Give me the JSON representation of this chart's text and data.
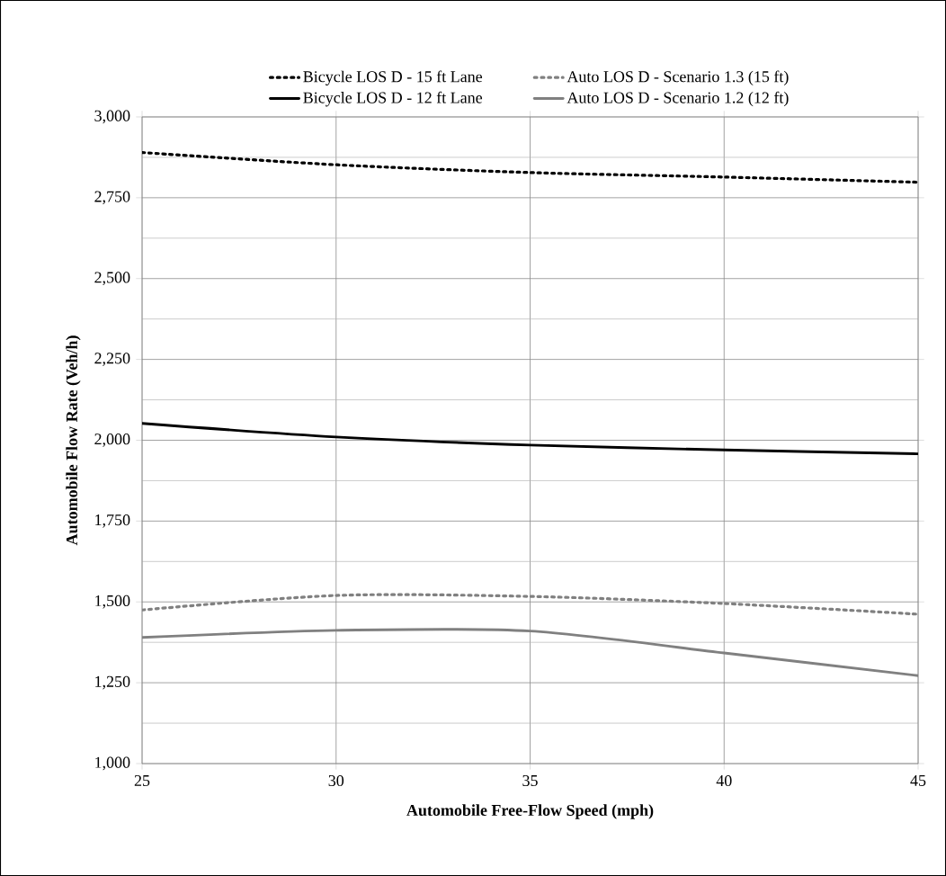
{
  "chart_data": {
    "type": "line",
    "xlabel": "Automobile Free-Flow Speed (mph)",
    "ylabel": "Automobile Flow Rate (Veh/h)",
    "x": [
      25,
      30,
      35,
      40,
      45
    ],
    "series": [
      {
        "name": "Bicycle LOS D - 15 ft Lane",
        "color": "#000000",
        "line_style": "dotted",
        "values": [
          2890,
          2852,
          2828,
          2814,
          2798
        ]
      },
      {
        "name": "Auto LOS D - Scenario 1.3 (15 ft)",
        "color": "#808080",
        "line_style": "dotted",
        "values": [
          1475,
          1520,
          1517,
          1495,
          1462
        ]
      },
      {
        "name": "Bicycle LOS D - 12 ft Lane",
        "color": "#000000",
        "line_style": "solid",
        "values": [
          2052,
          2010,
          1985,
          1970,
          1958
        ]
      },
      {
        "name": "Auto LOS D - Scenario 1.2 (12 ft)",
        "color": "#808080",
        "line_style": "solid",
        "values": [
          1390,
          1412,
          1410,
          1342,
          1272
        ]
      }
    ],
    "xlim": [
      25,
      45
    ],
    "xticks": [
      25,
      30,
      35,
      40,
      45
    ],
    "ylim": [
      1000,
      3000
    ],
    "yticks": [
      {
        "value": 1000,
        "label": "1,000"
      },
      {
        "value": 1250,
        "label": "1,250"
      },
      {
        "value": 1500,
        "label": "1,500"
      },
      {
        "value": 1750,
        "label": "1,750"
      },
      {
        "value": 2000,
        "label": "2,000"
      },
      {
        "value": 2250,
        "label": "2,250"
      },
      {
        "value": 2500,
        "label": "2,500"
      },
      {
        "value": 2750,
        "label": "2,750"
      },
      {
        "value": 3000,
        "label": "3,000"
      }
    ],
    "grid": true,
    "legend": "top",
    "marker": "none"
  }
}
